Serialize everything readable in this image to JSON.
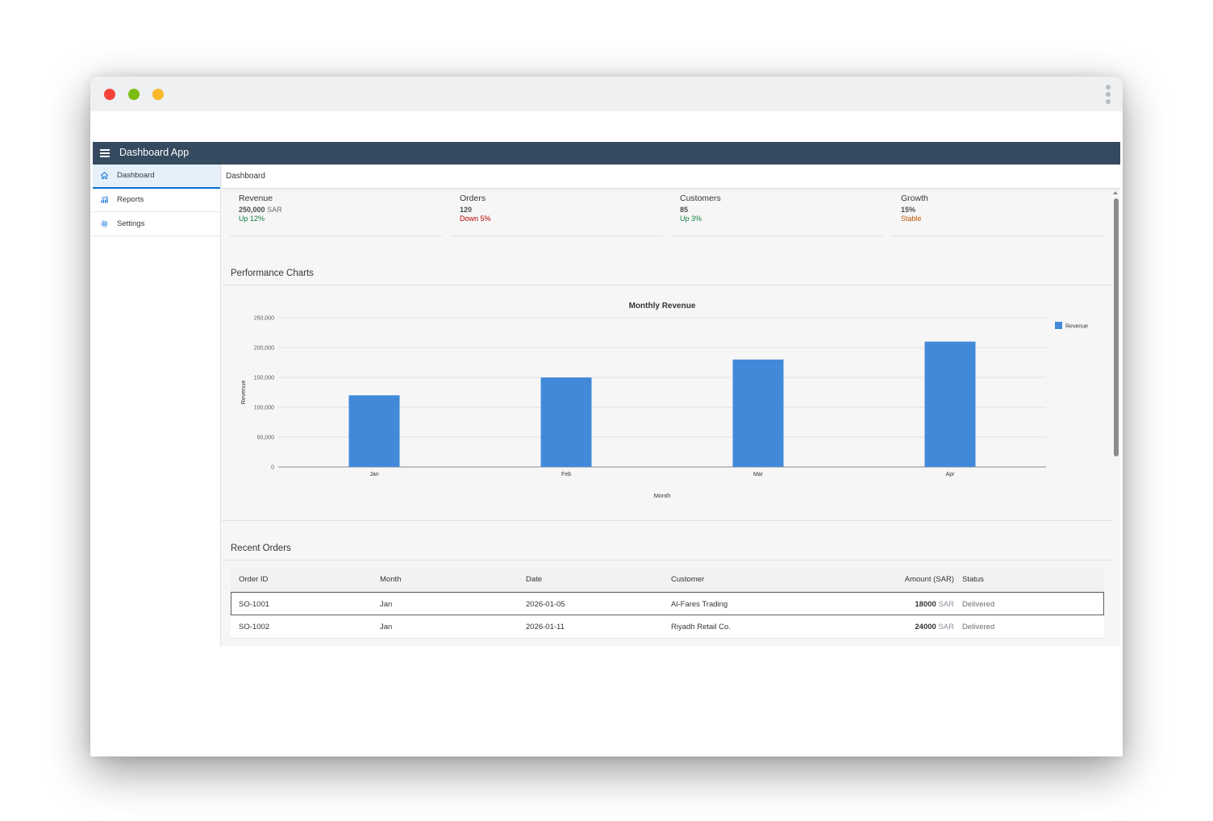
{
  "app": {
    "title": "Dashboard App"
  },
  "sidebar": {
    "items": [
      {
        "label": "Dashboard",
        "icon": "home-icon",
        "active": true
      },
      {
        "label": "Reports",
        "icon": "reports-icon",
        "active": false
      },
      {
        "label": "Settings",
        "icon": "gear-icon",
        "active": false
      }
    ]
  },
  "page": {
    "title": "Dashboard"
  },
  "kpis": [
    {
      "label": "Revenue",
      "value": "250,000",
      "unit": "SAR",
      "trend": "Up 12%",
      "trend_color": "#107e3e"
    },
    {
      "label": "Orders",
      "value": "120",
      "unit": "",
      "trend": "Down 5%",
      "trend_color": "#bb0000"
    },
    {
      "label": "Customers",
      "value": "85",
      "unit": "",
      "trend": "Up 3%",
      "trend_color": "#107e3e"
    },
    {
      "label": "Growth",
      "value": "15%",
      "unit": "",
      "trend": "Stable",
      "trend_color": "#c35500"
    }
  ],
  "sections": {
    "charts_title": "Performance Charts",
    "orders_title": "Recent Orders"
  },
  "chart_data": {
    "type": "bar",
    "title": "Monthly Revenue",
    "xlabel": "Month",
    "ylabel": "Revenue",
    "categories": [
      "Jan",
      "Feb",
      "Mar",
      "Apr"
    ],
    "series": [
      {
        "name": "Revenue",
        "values": [
          120000,
          150000,
          180000,
          210000
        ],
        "color": "#428ad9"
      }
    ],
    "ylim": [
      0,
      250000
    ],
    "yticks": [
      "0",
      "50,000",
      "100,000",
      "150,000",
      "200,000",
      "250,000"
    ],
    "grid": true,
    "legend": "top-right"
  },
  "orders": {
    "headers": [
      "Order ID",
      "Month",
      "Date",
      "Customer",
      "Amount (SAR)",
      "Status"
    ],
    "rows": [
      {
        "id": "SO-1001",
        "month": "Jan",
        "date": "2026-01-05",
        "customer": "Al-Fares Trading",
        "amount": "18000",
        "currency": "SAR",
        "status": "Delivered"
      },
      {
        "id": "SO-1002",
        "month": "Jan",
        "date": "2026-01-11",
        "customer": "Riyadh Retail Co.",
        "amount": "24000",
        "currency": "SAR",
        "status": "Delivered"
      }
    ]
  }
}
